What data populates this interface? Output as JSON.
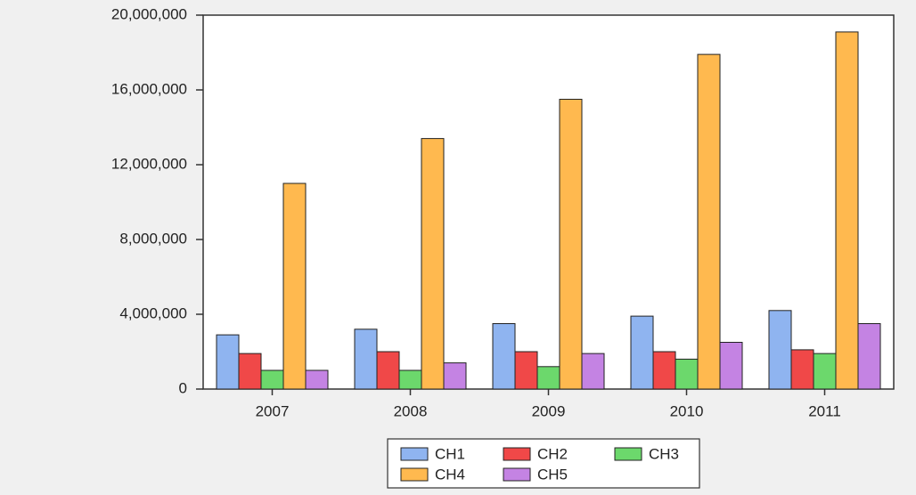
{
  "chart_data": {
    "type": "bar",
    "categories": [
      "2007",
      "2008",
      "2009",
      "2010",
      "2011"
    ],
    "series": [
      {
        "name": "CH1",
        "color": "#8fb4f0",
        "values": [
          2900000,
          3200000,
          3500000,
          3900000,
          4200000
        ]
      },
      {
        "name": "CH2",
        "color": "#f04848",
        "values": [
          1900000,
          2000000,
          2000000,
          2000000,
          2100000
        ]
      },
      {
        "name": "CH3",
        "color": "#6cd86c",
        "values": [
          1000000,
          1000000,
          1200000,
          1600000,
          1900000
        ]
      },
      {
        "name": "CH4",
        "color": "#ffb94f",
        "values": [
          11000000,
          13400000,
          15500000,
          17900000,
          19100000
        ]
      },
      {
        "name": "CH5",
        "color": "#c483e3",
        "values": [
          1000000,
          1400000,
          1900000,
          2500000,
          3500000
        ]
      }
    ],
    "ylim": [
      0,
      20000000
    ],
    "yticks": [
      0,
      {
        "value": 4000000,
        "label": "4,000,000"
      },
      {
        "value": 8000000,
        "label": "8,000,000"
      },
      {
        "value": 12000000,
        "label": "12,000,000"
      },
      {
        "value": 16000000,
        "label": "16,000,000"
      },
      {
        "value": 20000000,
        "label": "20,000,000"
      }
    ],
    "grid": false,
    "legend": "bottom"
  }
}
